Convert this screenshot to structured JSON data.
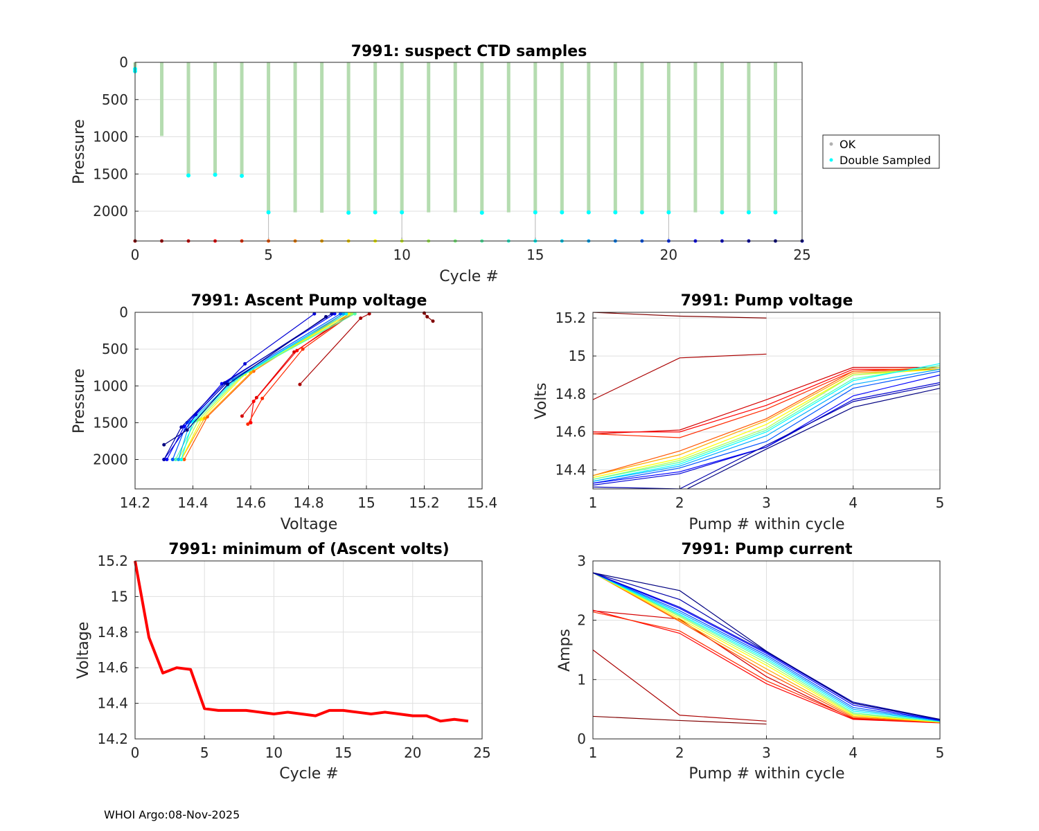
{
  "footer": "WHOI Argo:08-Nov-2025",
  "colors": {
    "ok": "#b5dcb0",
    "double_sampled": "#00ffff",
    "min_volts": "#ff0000"
  },
  "chart_data": [
    {
      "id": "suspect",
      "type": "scatter",
      "title": "7991: suspect CTD samples",
      "xlabel": "Cycle #",
      "ylabel": "Pressure",
      "xlim": [
        0,
        25
      ],
      "ylim": [
        0,
        2400
      ],
      "y_reversed": true,
      "xticks": [
        0,
        5,
        10,
        15,
        20,
        25
      ],
      "yticks": [
        0,
        500,
        1000,
        1500,
        2000
      ],
      "legend": [
        "OK",
        "Double Sampled"
      ],
      "legend_placement": "outside-right",
      "cycles": [
        0,
        1,
        2,
        3,
        4,
        5,
        6,
        7,
        8,
        9,
        10,
        11,
        12,
        13,
        14,
        15,
        16,
        17,
        18,
        19,
        20,
        21,
        22,
        23,
        24
      ],
      "max_pressure": [
        140,
        990,
        1520,
        1510,
        1525,
        2015,
        2015,
        2020,
        2020,
        2015,
        2015,
        2015,
        2015,
        2020,
        2015,
        2015,
        2015,
        2015,
        2015,
        2015,
        2015,
        2015,
        2015,
        2015,
        2015
      ],
      "double_sampled_pressure": [
        120,
        null,
        1520,
        1510,
        1525,
        2015,
        null,
        null,
        2020,
        2015,
        2015,
        null,
        null,
        2020,
        null,
        2015,
        2015,
        2015,
        2015,
        2015,
        2015,
        null,
        2015,
        2015,
        2015
      ],
      "bottom_marker_pressure": 2400
    },
    {
      "id": "ascent_pump",
      "type": "line",
      "title": "7991: Ascent Pump voltage",
      "xlabel": "Voltage",
      "ylabel": "Pressure",
      "xlim": [
        14.2,
        15.4
      ],
      "ylim": [
        0,
        2400
      ],
      "y_reversed": true,
      "xticks": [
        14.2,
        14.4,
        14.6,
        14.8,
        15,
        15.2,
        15.4
      ],
      "yticks": [
        0,
        500,
        1000,
        1500,
        2000
      ],
      "series": [
        {
          "cycle": 0,
          "points": [
            [
              15.2,
              10
            ],
            [
              15.21,
              60
            ],
            [
              15.23,
              120
            ]
          ]
        },
        {
          "cycle": 1,
          "points": [
            [
              14.77,
              980
            ],
            [
              14.98,
              80
            ],
            [
              15.01,
              20
            ]
          ]
        },
        {
          "cycle": 2,
          "points": [
            [
              14.57,
              1410
            ],
            [
              14.62,
              1160
            ],
            [
              14.75,
              540
            ],
            [
              14.95,
              20
            ]
          ]
        },
        {
          "cycle": 3,
          "points": [
            [
              14.6,
              1500
            ],
            [
              14.61,
              1210
            ],
            [
              14.76,
              520
            ],
            [
              14.94,
              20
            ]
          ]
        },
        {
          "cycle": 4,
          "points": [
            [
              14.59,
              1520
            ],
            [
              14.64,
              1170
            ],
            [
              14.78,
              500
            ],
            [
              14.95,
              20
            ]
          ]
        },
        {
          "cycle": 5,
          "points": [
            [
              14.37,
              2000
            ],
            [
              14.45,
              1420
            ],
            [
              14.61,
              800
            ],
            [
              14.92,
              20
            ]
          ]
        },
        {
          "cycle": 7,
          "points": [
            [
              14.36,
              2000
            ],
            [
              14.44,
              1440
            ],
            [
              14.6,
              820
            ],
            [
              14.93,
              20
            ]
          ]
        },
        {
          "cycle": 9,
          "points": [
            [
              14.36,
              2000
            ],
            [
              14.43,
              1450
            ],
            [
              14.58,
              840
            ],
            [
              14.94,
              20
            ]
          ]
        },
        {
          "cycle": 11,
          "points": [
            [
              14.35,
              2000
            ],
            [
              14.42,
              1460
            ],
            [
              14.57,
              860
            ],
            [
              14.95,
              20
            ]
          ]
        },
        {
          "cycle": 13,
          "points": [
            [
              14.34,
              2000
            ],
            [
              14.41,
              1470
            ],
            [
              14.56,
              880
            ],
            [
              14.96,
              20
            ]
          ]
        },
        {
          "cycle": 15,
          "points": [
            [
              14.36,
              2000
            ],
            [
              14.4,
              1480
            ],
            [
              14.55,
              900
            ],
            [
              14.93,
              20
            ]
          ]
        },
        {
          "cycle": 17,
          "points": [
            [
              14.35,
              2000
            ],
            [
              14.39,
              1490
            ],
            [
              14.54,
              920
            ],
            [
              14.92,
              20
            ]
          ]
        },
        {
          "cycle": 19,
          "points": [
            [
              14.33,
              2000
            ],
            [
              14.38,
              1500
            ],
            [
              14.52,
              950
            ],
            [
              14.91,
              20
            ]
          ]
        },
        {
          "cycle": 21,
          "points": [
            [
              14.31,
              2000
            ],
            [
              14.37,
              1550
            ],
            [
              14.5,
              970
            ],
            [
              14.89,
              20
            ]
          ]
        },
        {
          "cycle": 22,
          "points": [
            [
              14.3,
              2000
            ],
            [
              14.41,
              1390
            ],
            [
              14.58,
              700
            ],
            [
              14.82,
              20
            ]
          ]
        },
        {
          "cycle": 23,
          "points": [
            [
              14.3,
              2000
            ],
            [
              14.36,
              1560
            ],
            [
              14.51,
              960
            ],
            [
              14.88,
              20
            ]
          ]
        },
        {
          "cycle": 24,
          "points": [
            [
              14.3,
              1800
            ],
            [
              14.38,
              1600
            ],
            [
              14.52,
              980
            ],
            [
              14.86,
              60
            ]
          ]
        }
      ]
    },
    {
      "id": "pump_voltage",
      "type": "line",
      "title": "7991: Pump voltage",
      "xlabel": "Pump # within cycle",
      "ylabel": "Volts",
      "xlim": [
        1,
        5
      ],
      "ylim": [
        14.3,
        15.23
      ],
      "xticks": [
        1,
        2,
        3,
        4,
        5
      ],
      "yticks": [
        14.4,
        14.6,
        14.8,
        15,
        15.2
      ],
      "series": [
        {
          "cycle": 0,
          "values": [
            15.23,
            15.21,
            15.2
          ]
        },
        {
          "cycle": 1,
          "values": [
            14.77,
            14.99,
            15.01
          ]
        },
        {
          "cycle": 2,
          "values": [
            14.59,
            14.61,
            14.77,
            14.94,
            14.94
          ]
        },
        {
          "cycle": 3,
          "values": [
            14.6,
            14.6,
            14.74,
            14.93,
            14.93
          ]
        },
        {
          "cycle": 4,
          "values": [
            14.59,
            14.57,
            14.72,
            14.92,
            14.93
          ]
        },
        {
          "cycle": 5,
          "values": [
            14.37,
            14.5,
            14.67,
            14.92,
            14.94
          ]
        },
        {
          "cycle": 7,
          "values": [
            14.37,
            14.48,
            14.66,
            14.91,
            14.93
          ]
        },
        {
          "cycle": 9,
          "values": [
            14.36,
            14.46,
            14.64,
            14.9,
            14.93
          ]
        },
        {
          "cycle": 11,
          "values": [
            14.35,
            14.45,
            14.62,
            14.9,
            14.94
          ]
        },
        {
          "cycle": 13,
          "values": [
            14.35,
            14.44,
            14.61,
            14.88,
            14.95
          ]
        },
        {
          "cycle": 15,
          "values": [
            14.34,
            14.43,
            14.6,
            14.87,
            14.96
          ]
        },
        {
          "cycle": 17,
          "values": [
            14.34,
            14.42,
            14.58,
            14.85,
            14.93
          ]
        },
        {
          "cycle": 19,
          "values": [
            14.33,
            14.41,
            14.55,
            14.83,
            14.92
          ]
        },
        {
          "cycle": 21,
          "values": [
            14.33,
            14.39,
            14.52,
            14.79,
            14.9
          ]
        },
        {
          "cycle": 22,
          "values": [
            14.32,
            14.38,
            14.52,
            14.77,
            14.86
          ]
        },
        {
          "cycle": 23,
          "values": [
            14.31,
            14.3,
            14.53,
            14.76,
            14.85
          ]
        },
        {
          "cycle": 24,
          "values": [
            14.3,
            14.28,
            14.51,
            14.73,
            14.83
          ]
        }
      ]
    },
    {
      "id": "min_volts",
      "type": "line",
      "title": "7991: minimum of (Ascent volts)",
      "xlabel": "Cycle #",
      "ylabel": "Voltage",
      "xlim": [
        0,
        25
      ],
      "ylim": [
        14.2,
        15.2
      ],
      "xticks": [
        0,
        5,
        10,
        15,
        20,
        25
      ],
      "yticks": [
        14.2,
        14.4,
        14.6,
        14.8,
        15,
        15.2
      ],
      "x": [
        0,
        1,
        2,
        3,
        4,
        5,
        6,
        7,
        8,
        9,
        10,
        11,
        12,
        13,
        14,
        15,
        16,
        17,
        18,
        19,
        20,
        21,
        22,
        23,
        24
      ],
      "values": [
        15.2,
        14.77,
        14.57,
        14.6,
        14.59,
        14.37,
        14.36,
        14.36,
        14.36,
        14.35,
        14.34,
        14.35,
        14.34,
        14.33,
        14.36,
        14.36,
        14.35,
        14.34,
        14.35,
        14.34,
        14.33,
        14.33,
        14.3,
        14.31,
        14.3
      ]
    },
    {
      "id": "pump_current",
      "type": "line",
      "title": "7991: Pump current",
      "xlabel": "Pump # within cycle",
      "ylabel": "Amps",
      "xlim": [
        1,
        5
      ],
      "ylim": [
        0,
        3
      ],
      "xticks": [
        1,
        2,
        3,
        4,
        5
      ],
      "yticks": [
        0,
        1,
        2,
        3
      ],
      "series": [
        {
          "cycle": 0,
          "values": [
            0.38,
            0.31,
            0.25
          ]
        },
        {
          "cycle": 1,
          "values": [
            1.5,
            0.4,
            0.3
          ]
        },
        {
          "cycle": 2,
          "values": [
            2.16,
            2.02,
            1.05,
            0.34,
            0.28
          ]
        },
        {
          "cycle": 3,
          "values": [
            2.17,
            1.78,
            0.93,
            0.33,
            0.27
          ]
        },
        {
          "cycle": 4,
          "values": [
            2.14,
            1.82,
            0.98,
            0.35,
            0.28
          ]
        },
        {
          "cycle": 5,
          "values": [
            2.8,
            1.98,
            1.12,
            0.36,
            0.28
          ]
        },
        {
          "cycle": 7,
          "values": [
            2.8,
            2.0,
            1.18,
            0.38,
            0.28
          ]
        },
        {
          "cycle": 9,
          "values": [
            2.8,
            2.03,
            1.24,
            0.4,
            0.28
          ]
        },
        {
          "cycle": 11,
          "values": [
            2.8,
            2.06,
            1.28,
            0.42,
            0.29
          ]
        },
        {
          "cycle": 13,
          "values": [
            2.8,
            2.08,
            1.32,
            0.44,
            0.29
          ]
        },
        {
          "cycle": 15,
          "values": [
            2.8,
            2.1,
            1.35,
            0.47,
            0.3
          ]
        },
        {
          "cycle": 17,
          "values": [
            2.8,
            2.13,
            1.38,
            0.5,
            0.3
          ]
        },
        {
          "cycle": 19,
          "values": [
            2.8,
            2.16,
            1.41,
            0.53,
            0.31
          ]
        },
        {
          "cycle": 21,
          "values": [
            2.8,
            2.2,
            1.44,
            0.57,
            0.31
          ]
        },
        {
          "cycle": 22,
          "values": [
            2.8,
            2.22,
            1.46,
            0.6,
            0.32
          ]
        },
        {
          "cycle": 23,
          "values": [
            2.8,
            2.35,
            1.47,
            0.62,
            0.33
          ]
        },
        {
          "cycle": 24,
          "values": [
            2.8,
            2.5,
            1.48,
            0.6,
            0.33
          ]
        }
      ]
    }
  ]
}
